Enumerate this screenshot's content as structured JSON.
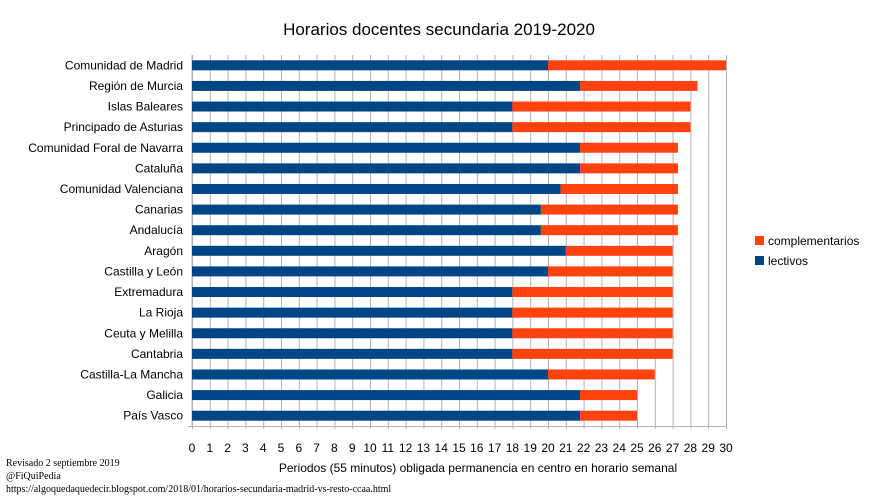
{
  "chart_data": {
    "type": "bar",
    "orientation": "horizontal",
    "stacked": true,
    "title": "Horarios docentes secundaria 2019-2020",
    "xlabel": "Periodos (55 minutos) obligada permanencia en centro en horario semanal",
    "ylabel": "",
    "xlim": [
      0,
      30
    ],
    "xticks": [
      "0",
      "1",
      "2",
      "3",
      "4",
      "5",
      "6",
      "7",
      "8",
      "9",
      "10",
      "11",
      "12",
      "13",
      "14",
      "15",
      "16",
      "17",
      "18",
      "19",
      "20",
      "21",
      "22",
      "23",
      "24",
      "25",
      "26",
      "27",
      "28",
      "29",
      "30"
    ],
    "grid": "vertical",
    "legend_position": "right",
    "categories": [
      "Comunidad de Madrid",
      "Región de Murcia",
      "Islas Baleares",
      "Principado de Asturias",
      "Comunidad Foral de Navarra",
      "Cataluña",
      "Comunidad Valenciana",
      "Canarias",
      "Andalucía",
      "Aragón",
      "Castilla y León",
      "Extremadura",
      "La Rioja",
      "Ceuta y Melilla",
      "Cantabria",
      "Castilla-La Mancha",
      "Galicia",
      "País Vasco"
    ],
    "series": [
      {
        "name": "lectivos",
        "color": "#004586",
        "values": [
          20,
          21.8,
          18,
          18,
          21.8,
          21.8,
          20.7,
          19.6,
          19.6,
          21,
          20,
          18,
          18,
          18,
          18,
          20,
          21.8,
          21.8
        ]
      },
      {
        "name": "complementarios",
        "color": "#ff420e",
        "values": [
          10,
          6.6,
          10,
          10,
          5.5,
          5.5,
          6.6,
          7.7,
          7.7,
          6,
          7,
          9,
          9,
          9,
          9,
          6,
          3.2,
          3.2
        ]
      }
    ],
    "legend": [
      "complementarios",
      "lectivos"
    ]
  },
  "notes": [
    "Revisado 2 septiembre 2019",
    "@FiQuiPedia",
    "https://algoquedaquedecir.blogspot.com/2018/01/horarios-secundaria-madrid-vs-resto-ccaa.html"
  ]
}
